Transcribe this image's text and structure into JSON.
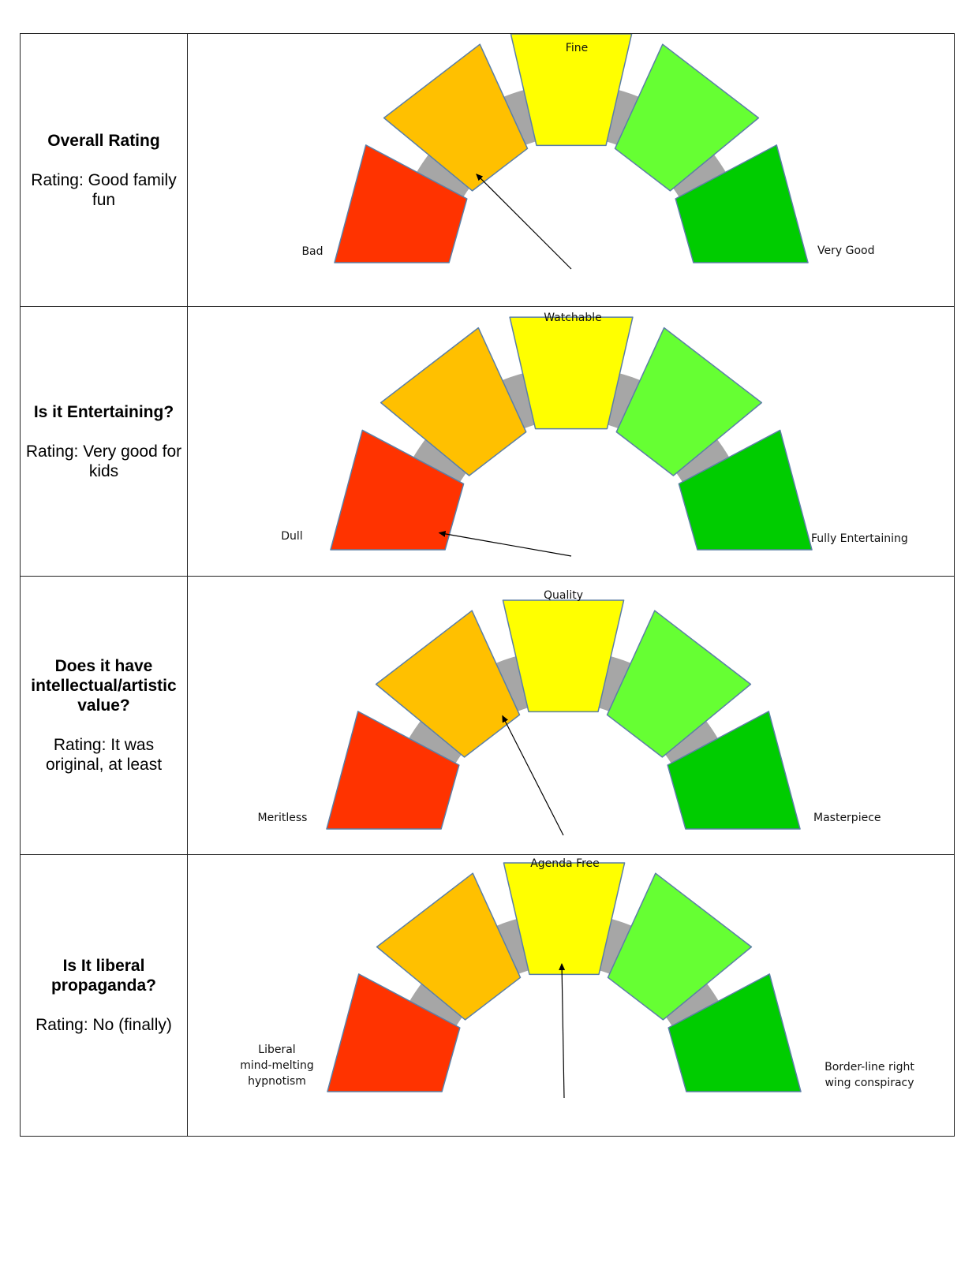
{
  "rows": [
    {
      "question": "Overall Rating",
      "rating": "Rating: Good family fun",
      "gauge": {
        "top_label": "Fine",
        "left_label": [
          "Bad"
        ],
        "right_label": [
          "Very Good"
        ],
        "needle_deg": 135
      }
    },
    {
      "question": "Is it Entertaining?",
      "rating": "Rating: Very good for kids",
      "gauge": {
        "top_label": "Watchable",
        "left_label": [
          "Dull"
        ],
        "right_label": [
          "Fully Entertaining"
        ],
        "needle_deg": 170
      }
    },
    {
      "question": "Does it have intellectual/artistic value?",
      "rating": "Rating: It was original, at least",
      "gauge": {
        "top_label": "Quality",
        "left_label": [
          "Meritless"
        ],
        "right_label": [
          "Masterpiece"
        ],
        "needle_deg": 117
      }
    },
    {
      "question": "Is It liberal propaganda?",
      "rating": "Rating: No (finally)",
      "gauge": {
        "top_label": "Agenda Free",
        "left_label": [
          "Liberal",
          "mind-melting",
          "hypnotism"
        ],
        "right_label": [
          "Border-line right",
          "wing conspiracy"
        ],
        "needle_deg": 91
      }
    }
  ],
  "segment_colors": [
    "#ff3300",
    "#ffc000",
    "#ffff00",
    "#66ff33",
    "#00cc00"
  ],
  "segment_border": "#5b7fa6",
  "back_arc_color": "#a6a6a6"
}
